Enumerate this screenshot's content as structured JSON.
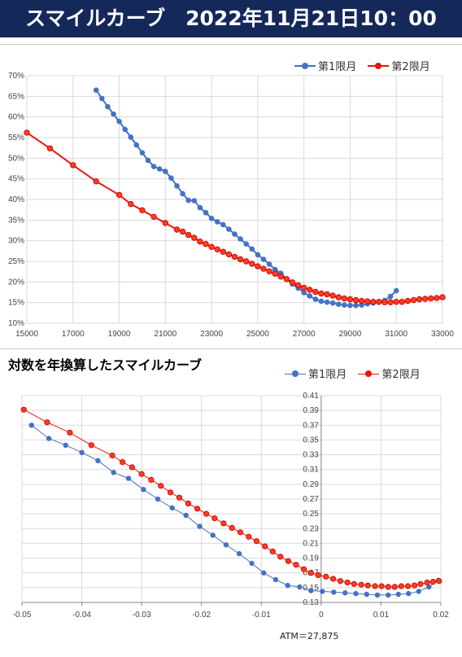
{
  "header": {
    "title": "スマイルカーブ　2022年11月21日10：00"
  },
  "chart_data": [
    {
      "type": "line",
      "title": "",
      "xlabel": "",
      "ylabel": "",
      "xlim": [
        15000,
        33000
      ],
      "ylim": [
        0.1,
        0.7
      ],
      "x_ticks": [
        "15000",
        "17000",
        "19000",
        "21000",
        "23000",
        "25000",
        "27000",
        "29000",
        "31000",
        "33000"
      ],
      "y_ticks": [
        "10%",
        "15%",
        "20%",
        "25%",
        "30%",
        "35%",
        "40%",
        "45%",
        "50%",
        "55%",
        "60%",
        "65%",
        "70%"
      ],
      "grid": true,
      "legend": "top-right",
      "series": [
        {
          "name": "第1限月",
          "color": "#4472c4",
          "points": [
            [
              18000,
              0.665
            ],
            [
              18250,
              0.645
            ],
            [
              18500,
              0.625
            ],
            [
              18750,
              0.607
            ],
            [
              19000,
              0.589
            ],
            [
              19250,
              0.57
            ],
            [
              19500,
              0.551
            ],
            [
              19750,
              0.532
            ],
            [
              20000,
              0.513
            ],
            [
              20250,
              0.495
            ],
            [
              20500,
              0.48
            ],
            [
              20750,
              0.474
            ],
            [
              21000,
              0.468
            ],
            [
              21250,
              0.452
            ],
            [
              21500,
              0.433
            ],
            [
              21750,
              0.414
            ],
            [
              22000,
              0.398
            ],
            [
              22250,
              0.397
            ],
            [
              22500,
              0.38
            ],
            [
              22750,
              0.368
            ],
            [
              23000,
              0.354
            ],
            [
              23250,
              0.346
            ],
            [
              23500,
              0.339
            ],
            [
              23750,
              0.328
            ],
            [
              24000,
              0.316
            ],
            [
              24250,
              0.304
            ],
            [
              24500,
              0.292
            ],
            [
              24750,
              0.28
            ],
            [
              25000,
              0.266
            ],
            [
              25250,
              0.255
            ],
            [
              25500,
              0.243
            ],
            [
              25750,
              0.23
            ],
            [
              26000,
              0.221
            ],
            [
              26250,
              0.207
            ],
            [
              26500,
              0.195
            ],
            [
              26750,
              0.185
            ],
            [
              27000,
              0.174
            ],
            [
              27250,
              0.166
            ],
            [
              27500,
              0.158
            ],
            [
              27750,
              0.153
            ],
            [
              28000,
              0.151
            ],
            [
              28250,
              0.149
            ],
            [
              28500,
              0.146
            ],
            [
              28750,
              0.144
            ],
            [
              29000,
              0.143
            ],
            [
              29250,
              0.143
            ],
            [
              29500,
              0.144
            ],
            [
              29750,
              0.147
            ],
            [
              30000,
              0.149
            ],
            [
              30250,
              0.151
            ],
            [
              30500,
              0.155
            ],
            [
              30750,
              0.165
            ],
            [
              31000,
              0.179
            ]
          ]
        },
        {
          "name": "第2限月",
          "color": "#e8160f",
          "points": [
            [
              15000,
              0.562
            ],
            [
              16000,
              0.524
            ],
            [
              17000,
              0.483
            ],
            [
              18000,
              0.444
            ],
            [
              19000,
              0.411
            ],
            [
              19500,
              0.389
            ],
            [
              20000,
              0.374
            ],
            [
              20500,
              0.358
            ],
            [
              21000,
              0.343
            ],
            [
              21500,
              0.327
            ],
            [
              21750,
              0.322
            ],
            [
              22000,
              0.314
            ],
            [
              22250,
              0.307
            ],
            [
              22500,
              0.298
            ],
            [
              22750,
              0.292
            ],
            [
              23000,
              0.285
            ],
            [
              23250,
              0.279
            ],
            [
              23500,
              0.273
            ],
            [
              23750,
              0.267
            ],
            [
              24000,
              0.261
            ],
            [
              24250,
              0.255
            ],
            [
              24500,
              0.25
            ],
            [
              24750,
              0.244
            ],
            [
              25000,
              0.238
            ],
            [
              25250,
              0.232
            ],
            [
              25500,
              0.226
            ],
            [
              25750,
              0.22
            ],
            [
              26000,
              0.213
            ],
            [
              26250,
              0.207
            ],
            [
              26500,
              0.199
            ],
            [
              26750,
              0.192
            ],
            [
              27000,
              0.186
            ],
            [
              27250,
              0.181
            ],
            [
              27500,
              0.176
            ],
            [
              27750,
              0.172
            ],
            [
              28000,
              0.17
            ],
            [
              28250,
              0.167
            ],
            [
              28500,
              0.163
            ],
            [
              28750,
              0.16
            ],
            [
              29000,
              0.158
            ],
            [
              29250,
              0.156
            ],
            [
              29500,
              0.154
            ],
            [
              29750,
              0.153
            ],
            [
              30000,
              0.152
            ],
            [
              30250,
              0.152
            ],
            [
              30500,
              0.151
            ],
            [
              30750,
              0.151
            ],
            [
              31000,
              0.152
            ],
            [
              31250,
              0.152
            ],
            [
              31500,
              0.154
            ],
            [
              31750,
              0.156
            ],
            [
              32000,
              0.158
            ],
            [
              32250,
              0.159
            ],
            [
              32500,
              0.16
            ],
            [
              32750,
              0.161
            ],
            [
              33000,
              0.163
            ]
          ]
        }
      ]
    },
    {
      "type": "scatter",
      "title": "対数を年換算したスマイルカーブ",
      "xlabel": "",
      "ylabel": "",
      "xlim": [
        -0.05,
        0.02
      ],
      "ylim": [
        0.13,
        0.41
      ],
      "x_ticks": [
        "-0.05",
        "-0.04",
        "-0.03",
        "-0.02",
        "-0.01",
        "0",
        "0.01",
        "0.02"
      ],
      "y_ticks": [
        "0.13",
        "0.15",
        "0.17",
        "0.19",
        "0.21",
        "0.23",
        "0.25",
        "0.27",
        "0.29",
        "0.31",
        "0.33",
        "0.35",
        "0.37",
        "0.39",
        "0.41"
      ],
      "grid": true,
      "legend": "top-right",
      "annotation": "ATM＝27,875",
      "series": [
        {
          "name": "第1限月",
          "color": "#4472c4",
          "points": [
            [
              -0.0484,
              0.37
            ],
            [
              -0.0455,
              0.352
            ],
            [
              -0.0427,
              0.343
            ],
            [
              -0.04,
              0.333
            ],
            [
              -0.0373,
              0.322
            ],
            [
              -0.0347,
              0.306
            ],
            [
              -0.0322,
              0.298
            ],
            [
              -0.0297,
              0.283
            ],
            [
              -0.0273,
              0.27
            ],
            [
              -0.0249,
              0.258
            ],
            [
              -0.0226,
              0.248
            ],
            [
              -0.0203,
              0.233
            ],
            [
              -0.0181,
              0.221
            ],
            [
              -0.0159,
              0.208
            ],
            [
              -0.0137,
              0.196
            ],
            [
              -0.0116,
              0.183
            ],
            [
              -0.0096,
              0.17
            ],
            [
              -0.0076,
              0.161
            ],
            [
              -0.0056,
              0.153
            ],
            [
              -0.0036,
              0.151
            ],
            [
              -0.0017,
              0.146
            ],
            [
              0.0002,
              0.145
            ],
            [
              0.0021,
              0.144
            ],
            [
              0.004,
              0.143
            ],
            [
              0.0058,
              0.142
            ],
            [
              0.0076,
              0.141
            ],
            [
              0.0094,
              0.14
            ],
            [
              0.0112,
              0.14
            ],
            [
              0.0129,
              0.141
            ],
            [
              0.0146,
              0.142
            ],
            [
              0.0163,
              0.145
            ],
            [
              0.018,
              0.151
            ],
            [
              0.0196,
              0.16
            ]
          ]
        },
        {
          "name": "第2限月",
          "color": "#e8160f",
          "points": [
            [
              -0.0497,
              0.391
            ],
            [
              -0.0458,
              0.374
            ],
            [
              -0.042,
              0.36
            ],
            [
              -0.0384,
              0.343
            ],
            [
              -0.0349,
              0.329
            ],
            [
              -0.0332,
              0.32
            ],
            [
              -0.0316,
              0.313
            ],
            [
              -0.03,
              0.304
            ],
            [
              -0.0284,
              0.296
            ],
            [
              -0.0268,
              0.288
            ],
            [
              -0.0252,
              0.279
            ],
            [
              -0.0237,
              0.272
            ],
            [
              -0.0222,
              0.264
            ],
            [
              -0.0207,
              0.257
            ],
            [
              -0.0192,
              0.25
            ],
            [
              -0.0178,
              0.244
            ],
            [
              -0.0163,
              0.237
            ],
            [
              -0.0149,
              0.231
            ],
            [
              -0.0135,
              0.225
            ],
            [
              -0.0121,
              0.219
            ],
            [
              -0.0108,
              0.213
            ],
            [
              -0.0094,
              0.206
            ],
            [
              -0.0081,
              0.199
            ],
            [
              -0.0068,
              0.192
            ],
            [
              -0.0055,
              0.186
            ],
            [
              -0.0042,
              0.181
            ],
            [
              -0.0029,
              0.175
            ],
            [
              -0.0017,
              0.17
            ],
            [
              -0.0005,
              0.167
            ],
            [
              0.0008,
              0.165
            ],
            [
              0.002,
              0.162
            ],
            [
              0.0032,
              0.159
            ],
            [
              0.0044,
              0.157
            ],
            [
              0.0055,
              0.155
            ],
            [
              0.0067,
              0.154
            ],
            [
              0.0078,
              0.153
            ],
            [
              0.009,
              0.152
            ],
            [
              0.0101,
              0.152
            ],
            [
              0.0112,
              0.151
            ],
            [
              0.0123,
              0.151
            ],
            [
              0.0134,
              0.152
            ],
            [
              0.0145,
              0.152
            ],
            [
              0.0156,
              0.153
            ],
            [
              0.0166,
              0.155
            ],
            [
              0.0177,
              0.157
            ],
            [
              0.0187,
              0.158
            ],
            [
              0.0197,
              0.159
            ]
          ]
        }
      ]
    }
  ]
}
